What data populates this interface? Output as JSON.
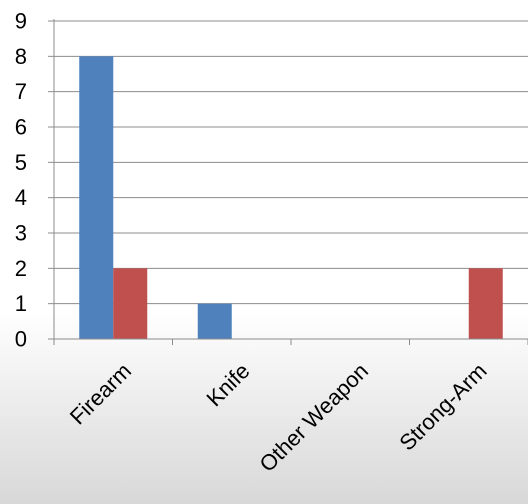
{
  "chart_data": {
    "type": "bar",
    "categories": [
      "Firearm",
      "Knife",
      "Other Weapon",
      "Strong-Arm"
    ],
    "series": [
      {
        "values": [
          8,
          1,
          0,
          0
        ],
        "color": "#4f81bd"
      },
      {
        "values": [
          2,
          0,
          0,
          2
        ],
        "color": "#c0504d"
      }
    ],
    "ylim": [
      0,
      9
    ],
    "yticks": [
      0,
      1,
      2,
      3,
      4,
      5,
      6,
      7,
      8,
      9
    ],
    "grid": true,
    "legend": "none"
  }
}
